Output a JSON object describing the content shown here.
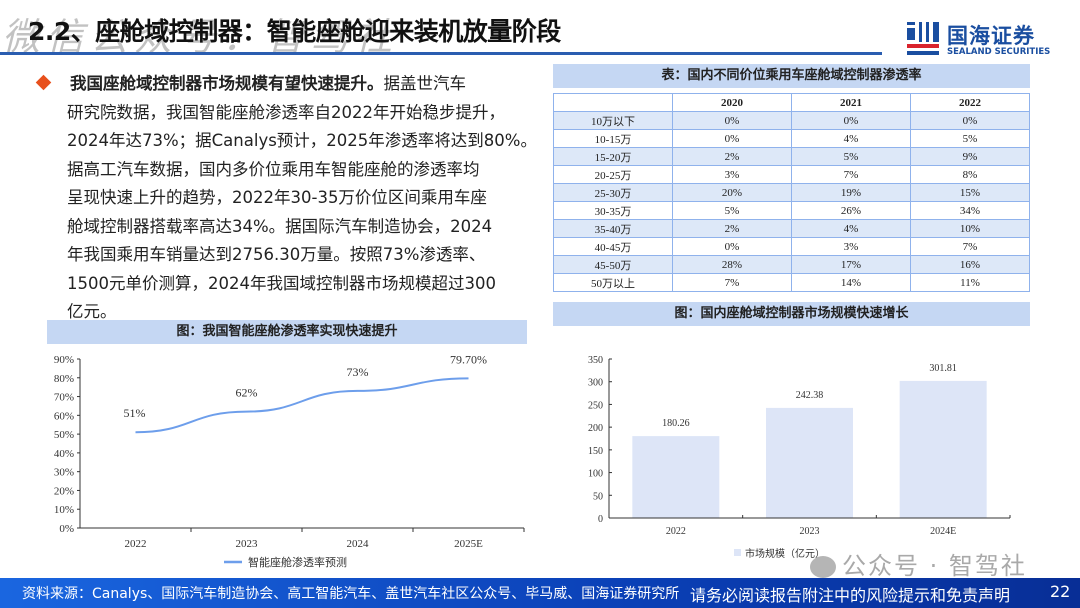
{
  "header": {
    "title": "2.2、座舱域控制器：智能座舱迎来装机放量阶段",
    "watermark": "微信公众号：智驾社"
  },
  "logo": {
    "name_cn": "国海证券",
    "name_en": "SEALAND SECURITIES",
    "brand_color": "#1a4ea0"
  },
  "body": {
    "lead": "我国座舱域控制器市场规模有望快速提升。",
    "lines": [
      "据盖世汽车",
      "研究院数据，我国智能座舱渗透率自2022年开始稳步提升，",
      "2024年达73%；据Canalys预计，2025年渗透率将达到80%。",
      "据高工汽车数据，国内多价位乘用车智能座舱的渗透率均",
      "呈现快速上升的趋势，2022年30-35万价位区间乘用车座",
      "舱域控制器搭载率高达34%。据国际汽车制造协会，2024",
      "年我国乘用车销量达到2756.30万量。按照73%渗透率、",
      "1500元单价测算，2024年我国域控制器市场规模超过300",
      "亿元。"
    ]
  },
  "table": {
    "caption": "表：国内不同价位乘用车座舱域控制器渗透率",
    "headers": [
      "",
      "2020",
      "2021",
      "2022"
    ],
    "rows": [
      [
        "10万以下",
        "0%",
        "0%",
        "0%"
      ],
      [
        "10-15万",
        "0%",
        "4%",
        "5%"
      ],
      [
        "15-20万",
        "2%",
        "5%",
        "9%"
      ],
      [
        "20-25万",
        "3%",
        "7%",
        "8%"
      ],
      [
        "25-30万",
        "20%",
        "19%",
        "15%"
      ],
      [
        "30-35万",
        "5%",
        "26%",
        "34%"
      ],
      [
        "35-40万",
        "2%",
        "4%",
        "10%"
      ],
      [
        "40-45万",
        "0%",
        "3%",
        "7%"
      ],
      [
        "45-50万",
        "28%",
        "17%",
        "16%"
      ],
      [
        "50万以上",
        "7%",
        "14%",
        "11%"
      ]
    ]
  },
  "chart_data": [
    {
      "type": "line",
      "title": "图：我国智能座舱渗透率实现快速提升",
      "categories": [
        "2022",
        "2023",
        "2024",
        "2025E"
      ],
      "series": [
        {
          "name": "智能座舱渗透率预测",
          "values": [
            51,
            62,
            73,
            79.7
          ],
          "labels": [
            "51%",
            "62%",
            "73%",
            "79.70%"
          ],
          "color": "#6d9eeb"
        }
      ],
      "yticks": [
        "0%",
        "10%",
        "20%",
        "30%",
        "40%",
        "50%",
        "60%",
        "70%",
        "80%",
        "90%"
      ],
      "ylim": [
        0,
        90
      ],
      "grid": false,
      "legend": "bottom"
    },
    {
      "type": "bar",
      "title": "图：国内座舱域控制器市场规模快速增长",
      "categories": [
        "2022",
        "2023",
        "2024E"
      ],
      "series": [
        {
          "name": "市场规模（亿元）",
          "values": [
            180.26,
            242.38,
            301.81
          ],
          "labels": [
            "180.26",
            "242.38",
            "301.81"
          ],
          "color": "#dde5f7"
        }
      ],
      "yticks": [
        "0",
        "50",
        "100",
        "150",
        "200",
        "250",
        "300",
        "350"
      ],
      "ylim": [
        0,
        350
      ],
      "grid": false,
      "legend": "bottom"
    }
  ],
  "footer": {
    "source": "资料来源：Canalys、国际汽车制造协会、高工智能汽车、盖世汽车社区公众号、毕马威、国海证券研究所",
    "disclaimer": "请务必阅读报告附注中的风险提示和免责声明",
    "page": "22",
    "watermark": "公众号 · 智驾社"
  }
}
